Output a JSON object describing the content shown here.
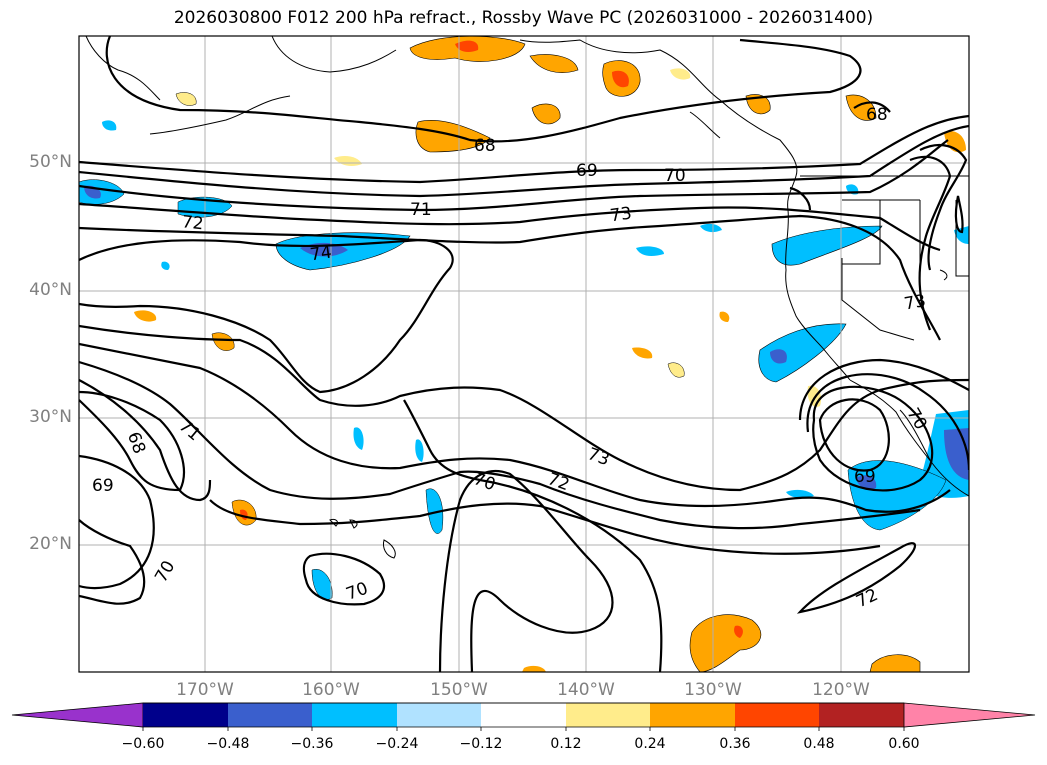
{
  "title": "2026030800 F012 200 hPa refract., Rossby Wave PC (2026031000 - 2026031400)",
  "lat_labels": [
    "50°N",
    "40°N",
    "30°N",
    "20°N"
  ],
  "lon_labels": [
    "170°W",
    "160°W",
    "150°W",
    "140°W",
    "130°W",
    "120°W"
  ],
  "contour_labels": [
    "68",
    "69",
    "70",
    "71",
    "72",
    "73",
    "74"
  ],
  "colorbar": {
    "ticks": [
      "−0.60",
      "−0.48",
      "−0.36",
      "−0.24",
      "−0.12",
      "0.12",
      "0.24",
      "0.36",
      "0.48",
      "0.60"
    ],
    "colors": [
      "#9932cc",
      "#00008b",
      "#3a5fcd",
      "#00bfff",
      "#b0e2ff",
      "#ffffff",
      "#ffec8b",
      "#ffa500",
      "#ff4500",
      "#b22222",
      "#ff83a8"
    ]
  }
}
